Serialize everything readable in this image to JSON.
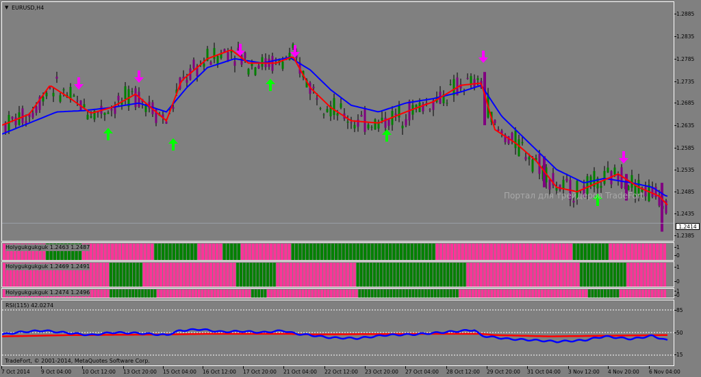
{
  "symbol_label": "EURUSD,H4",
  "current_price": "1.2414",
  "watermark": "Портал для трейдеров TradeFort",
  "copyright": "TradeFort, © 2001-2014, MetaQuotes Software Corp.",
  "price_axis": [
    "1.2885",
    "1.2835",
    "1.2785",
    "1.2735",
    "1.2685",
    "1.2635",
    "1.2585",
    "1.2535",
    "1.2485",
    "1.2435",
    "1.2385"
  ],
  "time_axis": [
    "7 Oct 2014",
    "9 Oct 04:00",
    "10 Oct 12:00",
    "13 Oct 20:00",
    "15 Oct 04:00",
    "16 Oct 12:00",
    "17 Oct 20:00",
    "21 Oct 04:00",
    "22 Oct 12:00",
    "23 Oct 20:00",
    "27 Oct 04:00",
    "28 Oct 12:00",
    "29 Oct 20:00",
    "31 Oct 04:00",
    "3 Nov 12:00",
    "4 Nov 20:00",
    "6 Nov 04:00"
  ],
  "indicators": [
    {
      "label": "Holygukgukguk 1.2463 1.2487",
      "axis": [
        "1",
        "0"
      ],
      "pattern": "PPPPPPPPPPPPGGGGGGGGGGPPPPPPPPPPPPPPPPPPPPGGGGGGGGGGGGPPPPPPPGGGGGPPPPPPPPPPPPPPGGGGGGGGGGGGGGGGGGGGGGGGGGGGGGGGGGGGGGGGPPPPPPPPPPPPPPPPPPPPPPPPPPPPPPPPPPPPPPGGGGGGGGGGPPPPPPPPPPPPPPPP"
    },
    {
      "label": "Holygukgukguk 1.2469 1.2491",
      "axis": [
        "1",
        "0"
      ],
      "pattern": "PPPPPPPPPPPPPPPPPPPPPPPPPPPPPPPPGGGGGGGGGGPPPPPPPPPPPPPPPPPPPPPPPPPPPPGGGGGGGGGGGGPPPPPPPPPPPPPPPPPPPPPPPPGGGGGGGGGGGGGGGGGGGGGGGGGGGGGGGGGPPPPPPPPPPPPPPPPPPPPPPPPPPPPPPPPPPGGGGGGGGGGGGGGPPPPPPPPPPPP"
    },
    {
      "label": "Holygukgukguk 1.2474 1.2496",
      "axis": [
        "1",
        "0"
      ],
      "pattern": "PPPPPPPPPPPPPPPPPPPPPPPPPPPPPPPPPPGGGGGGGGGGGGGGGPPPPPPPPPPPPPPPPPPPPPPPPPPPPPPGGGGGPPPPPPPPPPPPPPPPPPPPPPPPPPPPPGGGGGGGGGGGGGGGGGGGGGGGGGGGGGGGGPPPPPPPPPPPPPPPPPPPPPPPPPPPPPPPPPPPPPPPPPGGGGGGGGGGPPPPPPPPPPPPPPP"
    }
  ],
  "rsi": {
    "label": "RSI(115) 42.0274",
    "levels": [
      "85",
      "50",
      "15"
    ]
  },
  "colors": {
    "bg": "#808080",
    "bull": "#008000",
    "bear": "#800080",
    "ma_fast": "#ff0000",
    "ma_slow": "#0000ff",
    "arrow_up": "#00ff00",
    "arrow_down": "#ff00ff",
    "hist_green": "#008000",
    "hist_pink": "#ff3399"
  }
}
